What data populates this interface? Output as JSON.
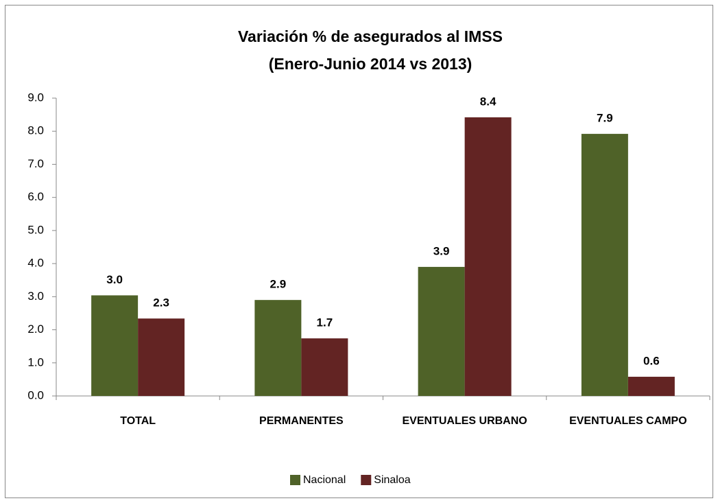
{
  "chart_data": {
    "type": "bar",
    "title": [
      "Variación % de asegurados al IMSS",
      "(Enero-Junio 2014 vs 2013)"
    ],
    "categories": [
      "TOTAL",
      "PERMANENTES",
      "EVENTUALES URBANO",
      "EVENTUALES CAMPO"
    ],
    "series": [
      {
        "name": "Nacional",
        "color": "#4f6228",
        "values": [
          3.04,
          2.9,
          3.9,
          7.92
        ],
        "value_labels": [
          "3.0",
          "2.9",
          "3.9",
          "7.9"
        ]
      },
      {
        "name": "Sinaloa",
        "color": "#632423",
        "values": [
          2.34,
          1.74,
          8.42,
          0.58
        ],
        "value_labels": [
          "2.3",
          "1.7",
          "8.4",
          "0.6"
        ]
      }
    ],
    "ylim": [
      0,
      9
    ],
    "yticks": [
      {
        "value": 0,
        "label": "0.0"
      },
      {
        "value": 1,
        "label": "1.0"
      },
      {
        "value": 2,
        "label": "2.0"
      },
      {
        "value": 3,
        "label": "3.0"
      },
      {
        "value": 4,
        "label": "4.0"
      },
      {
        "value": 5,
        "label": "5.0"
      },
      {
        "value": 6,
        "label": "6.0"
      },
      {
        "value": 7,
        "label": "7.0"
      },
      {
        "value": 8,
        "label": "8.0"
      },
      {
        "value": 9,
        "label": "9.0"
      }
    ],
    "legend": "bottom"
  }
}
